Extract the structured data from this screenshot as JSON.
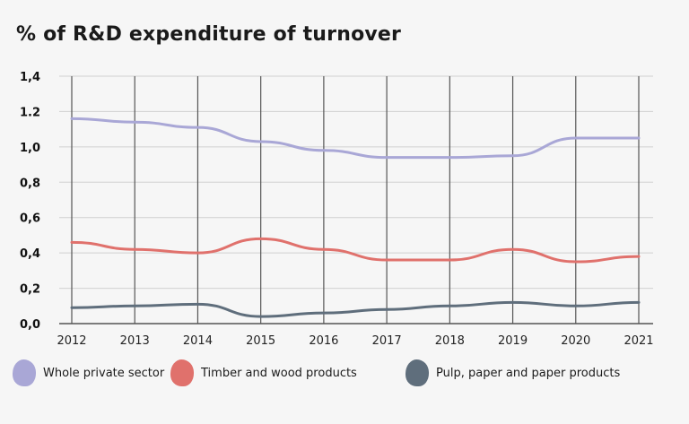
{
  "title": "% of R&D expenditure of turnover",
  "chart_data": {
    "type": "line",
    "title": "% of R&D expenditure of turnover",
    "x": [
      "2012",
      "2013",
      "2014",
      "2015",
      "2016",
      "2017",
      "2018",
      "2019",
      "2020",
      "2021"
    ],
    "ylim": [
      0,
      1.4
    ],
    "yticks": [
      "0,0",
      "0,2",
      "0,4",
      "0,6",
      "0,8",
      "1,0",
      "1.2",
      "1,4"
    ],
    "grid": true,
    "legend_position": "bottom",
    "series": [
      {
        "name": "Whole private sector",
        "color": "#a9a7d6",
        "values": [
          1.16,
          1.14,
          1.11,
          1.03,
          0.98,
          0.94,
          0.94,
          0.95,
          1.05,
          1.05
        ]
      },
      {
        "name": "Timber and wood products",
        "color": "#e0716c",
        "values": [
          0.46,
          0.42,
          0.4,
          0.48,
          0.42,
          0.36,
          0.36,
          0.42,
          0.35,
          0.38
        ]
      },
      {
        "name": "Pulp, paper and paper products",
        "color": "#5f6e7c",
        "values": [
          0.09,
          0.1,
          0.11,
          0.04,
          0.06,
          0.08,
          0.1,
          0.12,
          0.1,
          0.12
        ]
      }
    ]
  }
}
